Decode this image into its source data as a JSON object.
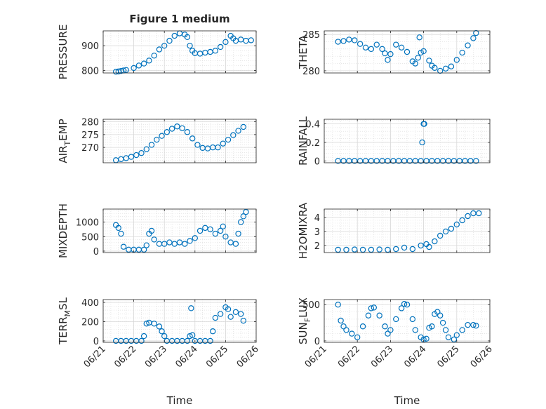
{
  "figure": {
    "title": "Figure 1 medium"
  },
  "colors": {
    "marker": "#0072BD",
    "axis": "#262626",
    "grid": "#d9d9d9",
    "background": "#ffffff"
  },
  "chart_data": [
    {
      "id": "pressure",
      "type": "scatter",
      "title": "Figure 1 medium",
      "xlabel": "",
      "ylabel": "PRESSURE",
      "xlim": [
        "06/21",
        "06/26"
      ],
      "ylim": [
        790,
        960
      ],
      "yticks": [
        800,
        900
      ],
      "xticks": [],
      "grid": true,
      "minor_grid": true,
      "points": [
        [
          "06/21 10:00",
          795
        ],
        [
          "06/21 12:00",
          796
        ],
        [
          "06/21 14:00",
          798
        ],
        [
          "06/21 16:00",
          800
        ],
        [
          "06/21 18:00",
          802
        ],
        [
          "06/22 00:00",
          810
        ],
        [
          "06/22 04:00",
          820
        ],
        [
          "06/22 08:00",
          828
        ],
        [
          "06/22 12:00",
          840
        ],
        [
          "06/22 16:00",
          860
        ],
        [
          "06/22 20:00",
          885
        ],
        [
          "06/23 00:00",
          900
        ],
        [
          "06/23 04:00",
          920
        ],
        [
          "06/23 08:00",
          940
        ],
        [
          "06/23 12:00",
          950
        ],
        [
          "06/23 16:00",
          945
        ],
        [
          "06/23 18:00",
          935
        ],
        [
          "06/23 20:00",
          900
        ],
        [
          "06/23 22:00",
          880
        ],
        [
          "06/24 00:00",
          870
        ],
        [
          "06/24 04:00",
          868
        ],
        [
          "06/24 08:00",
          872
        ],
        [
          "06/24 12:00",
          875
        ],
        [
          "06/24 16:00",
          880
        ],
        [
          "06/24 20:00",
          895
        ],
        [
          "06/25 00:00",
          915
        ],
        [
          "06/25 04:00",
          940
        ],
        [
          "06/25 06:00",
          930
        ],
        [
          "06/25 08:00",
          920
        ],
        [
          "06/25 12:00",
          925
        ],
        [
          "06/25 16:00",
          920
        ],
        [
          "06/25 20:00",
          922
        ]
      ]
    },
    {
      "id": "theta",
      "type": "scatter",
      "title": "",
      "xlabel": "",
      "ylabel": "THETA",
      "xlim": [
        "06/21",
        "06/26"
      ],
      "ylim": [
        279.7,
        285.5
      ],
      "yticks": [
        280,
        285
      ],
      "xticks": [],
      "grid": true,
      "minor_grid": true,
      "points": [
        [
          "06/21 10:00",
          284.0
        ],
        [
          "06/21 14:00",
          284.1
        ],
        [
          "06/21 18:00",
          284.3
        ],
        [
          "06/21 22:00",
          284.2
        ],
        [
          "06/22 02:00",
          283.7
        ],
        [
          "06/22 06:00",
          283.2
        ],
        [
          "06/22 10:00",
          283.0
        ],
        [
          "06/22 14:00",
          283.6
        ],
        [
          "06/22 18:00",
          283.0
        ],
        [
          "06/22 20:00",
          282.4
        ],
        [
          "06/22 22:00",
          281.5
        ],
        [
          "06/23 00:00",
          282.3
        ],
        [
          "06/23 04:00",
          283.6
        ],
        [
          "06/23 08:00",
          283.2
        ],
        [
          "06/23 12:00",
          282.6
        ],
        [
          "06/23 16:00",
          281.3
        ],
        [
          "06/23 18:00",
          281.0
        ],
        [
          "06/23 20:00",
          281.8
        ],
        [
          "06/23 21:00",
          284.6
        ],
        [
          "06/23 22:00",
          282.5
        ],
        [
          "06/24 00:00",
          282.7
        ],
        [
          "06/24 04:00",
          281.4
        ],
        [
          "06/24 06:00",
          280.7
        ],
        [
          "06/24 08:00",
          280.4
        ],
        [
          "06/24 12:00",
          280.0
        ],
        [
          "06/24 16:00",
          280.3
        ],
        [
          "06/24 20:00",
          280.6
        ],
        [
          "06/25 00:00",
          281.5
        ],
        [
          "06/25 04:00",
          282.5
        ],
        [
          "06/25 08:00",
          283.5
        ],
        [
          "06/25 12:00",
          284.5
        ],
        [
          "06/25 14:00",
          285.2
        ]
      ]
    },
    {
      "id": "air-temp",
      "type": "scatter",
      "title": "",
      "xlabel": "",
      "ylabel": "AIR_TEMP",
      "ylabel_main": "AIR",
      "ylabel_sub": "T",
      "ylabel_rest": "EMP",
      "xlim": [
        "06/21",
        "06/26"
      ],
      "ylim": [
        264,
        281
      ],
      "yticks": [
        270,
        275,
        280
      ],
      "xticks": [],
      "grid": true,
      "minor_grid": true,
      "points": [
        [
          "06/21 10:00",
          265.0
        ],
        [
          "06/21 14:00",
          265.4
        ],
        [
          "06/21 18:00",
          265.8
        ],
        [
          "06/21 22:00",
          266.3
        ],
        [
          "06/22 02:00",
          267.0
        ],
        [
          "06/22 06:00",
          267.8
        ],
        [
          "06/22 10:00",
          269.3
        ],
        [
          "06/22 14:00",
          271.0
        ],
        [
          "06/22 18:00",
          273.0
        ],
        [
          "06/22 22:00",
          274.5
        ],
        [
          "06/23 02:00",
          276.0
        ],
        [
          "06/23 06:00",
          277.3
        ],
        [
          "06/23 10:00",
          278.2
        ],
        [
          "06/23 14:00",
          277.5
        ],
        [
          "06/23 18:00",
          276.0
        ],
        [
          "06/23 22:00",
          273.5
        ],
        [
          "06/24 02:00",
          271.0
        ],
        [
          "06/24 06:00",
          269.8
        ],
        [
          "06/24 10:00",
          269.6
        ],
        [
          "06/24 14:00",
          270.0
        ],
        [
          "06/24 18:00",
          270.0
        ],
        [
          "06/24 22:00",
          271.5
        ],
        [
          "06/25 02:00",
          273.0
        ],
        [
          "06/25 06:00",
          274.8
        ],
        [
          "06/25 10:00",
          276.5
        ],
        [
          "06/25 14:00",
          278.0
        ]
      ]
    },
    {
      "id": "rainfall",
      "type": "scatter",
      "title": "",
      "xlabel": "",
      "ylabel": "RAINFALL",
      "xlim": [
        "06/21",
        "06/26"
      ],
      "ylim": [
        -0.02,
        0.45
      ],
      "yticks": [
        "0",
        "0.2",
        "0.4"
      ],
      "ytick_values": [
        0,
        0.2,
        0.4
      ],
      "xticks": [],
      "grid": true,
      "minor_grid": true,
      "points": [
        [
          "06/21 10:00",
          0
        ],
        [
          "06/21 14:00",
          0
        ],
        [
          "06/21 18:00",
          0
        ],
        [
          "06/21 22:00",
          0
        ],
        [
          "06/22 02:00",
          0
        ],
        [
          "06/22 06:00",
          0
        ],
        [
          "06/22 10:00",
          0
        ],
        [
          "06/22 14:00",
          0
        ],
        [
          "06/22 18:00",
          0
        ],
        [
          "06/22 22:00",
          0
        ],
        [
          "06/23 02:00",
          0
        ],
        [
          "06/23 06:00",
          0
        ],
        [
          "06/23 10:00",
          0
        ],
        [
          "06/23 14:00",
          0
        ],
        [
          "06/23 18:00",
          0
        ],
        [
          "06/23 22:00",
          0
        ],
        [
          "06/24 00:00",
          0.4
        ],
        [
          "06/24 00:30",
          0.4
        ],
        [
          "06/23 23:00",
          0.2
        ],
        [
          "06/24 02:00",
          0
        ],
        [
          "06/24 06:00",
          0
        ],
        [
          "06/24 10:00",
          0
        ],
        [
          "06/24 14:00",
          0
        ],
        [
          "06/24 18:00",
          0
        ],
        [
          "06/24 22:00",
          0
        ],
        [
          "06/25 02:00",
          0
        ],
        [
          "06/25 06:00",
          0
        ],
        [
          "06/25 10:00",
          0
        ],
        [
          "06/25 14:00",
          0
        ]
      ]
    },
    {
      "id": "mixdepth",
      "type": "scatter",
      "title": "",
      "xlabel": "",
      "ylabel": "MIXDEPTH",
      "xlim": [
        "06/21",
        "06/26"
      ],
      "ylim": [
        -50,
        1450
      ],
      "yticks": [
        0,
        500,
        1000
      ],
      "xticks": [],
      "grid": true,
      "minor_grid": true,
      "points": [
        [
          "06/21 10:00",
          900
        ],
        [
          "06/21 12:00",
          800
        ],
        [
          "06/21 14:00",
          600
        ],
        [
          "06/21 16:00",
          150
        ],
        [
          "06/21 20:00",
          50
        ],
        [
          "06/22 00:00",
          50
        ],
        [
          "06/22 04:00",
          50
        ],
        [
          "06/22 08:00",
          50
        ],
        [
          "06/22 10:00",
          200
        ],
        [
          "06/22 12:00",
          600
        ],
        [
          "06/22 14:00",
          700
        ],
        [
          "06/22 16:00",
          400
        ],
        [
          "06/22 20:00",
          250
        ],
        [
          "06/23 00:00",
          250
        ],
        [
          "06/23 04:00",
          300
        ],
        [
          "06/23 08:00",
          250
        ],
        [
          "06/23 12:00",
          300
        ],
        [
          "06/23 16:00",
          250
        ],
        [
          "06/23 20:00",
          350
        ],
        [
          "06/24 00:00",
          450
        ],
        [
          "06/24 04:00",
          700
        ],
        [
          "06/24 08:00",
          800
        ],
        [
          "06/24 12:00",
          750
        ],
        [
          "06/24 16:00",
          600
        ],
        [
          "06/24 20:00",
          700
        ],
        [
          "06/24 22:00",
          850
        ],
        [
          "06/25 00:00",
          500
        ],
        [
          "06/25 04:00",
          300
        ],
        [
          "06/25 08:00",
          250
        ],
        [
          "06/25 10:00",
          600
        ],
        [
          "06/25 12:00",
          1000
        ],
        [
          "06/25 14:00",
          1200
        ],
        [
          "06/25 16:00",
          1350
        ]
      ]
    },
    {
      "id": "h2omixra",
      "type": "scatter",
      "title": "",
      "xlabel": "",
      "ylabel": "H2OMIXRA",
      "xlim": [
        "06/21",
        "06/26"
      ],
      "ylim": [
        1.5,
        4.6
      ],
      "yticks": [
        2,
        3,
        4
      ],
      "xticks": [],
      "grid": true,
      "minor_grid": true,
      "points": [
        [
          "06/21 10:00",
          1.7
        ],
        [
          "06/21 16:00",
          1.7
        ],
        [
          "06/21 22:00",
          1.72
        ],
        [
          "06/22 04:00",
          1.7
        ],
        [
          "06/22 10:00",
          1.7
        ],
        [
          "06/22 16:00",
          1.72
        ],
        [
          "06/22 22:00",
          1.7
        ],
        [
          "06/23 04:00",
          1.75
        ],
        [
          "06/23 10:00",
          1.85
        ],
        [
          "06/23 16:00",
          1.75
        ],
        [
          "06/23 22:00",
          2.0
        ],
        [
          "06/24 02:00",
          2.1
        ],
        [
          "06/24 04:00",
          1.9
        ],
        [
          "06/24 08:00",
          2.3
        ],
        [
          "06/24 12:00",
          2.7
        ],
        [
          "06/24 16:00",
          3.0
        ],
        [
          "06/24 20:00",
          3.2
        ],
        [
          "06/25 00:00",
          3.5
        ],
        [
          "06/25 04:00",
          3.8
        ],
        [
          "06/25 08:00",
          4.1
        ],
        [
          "06/25 12:00",
          4.3
        ],
        [
          "06/25 16:00",
          4.3
        ]
      ]
    },
    {
      "id": "terr-msl",
      "type": "scatter",
      "title": "",
      "xlabel": "Time",
      "ylabel": "TERR_MSL",
      "ylabel_main": "TERR",
      "ylabel_sub": "M",
      "ylabel_rest": "SL",
      "xlim": [
        "06/21",
        "06/26"
      ],
      "ylim": [
        -15,
        430
      ],
      "yticks": [
        0,
        200,
        400
      ],
      "xticks": [
        "06/21",
        "06/22",
        "06/23",
        "06/24",
        "06/25",
        "06/26"
      ],
      "grid": true,
      "minor_grid": true,
      "points": [
        [
          "06/21 10:00",
          0
        ],
        [
          "06/21 14:00",
          0
        ],
        [
          "06/21 18:00",
          0
        ],
        [
          "06/21 22:00",
          0
        ],
        [
          "06/22 02:00",
          0
        ],
        [
          "06/22 06:00",
          0
        ],
        [
          "06/22 08:00",
          50
        ],
        [
          "06/22 10:00",
          180
        ],
        [
          "06/22 12:00",
          190
        ],
        [
          "06/22 16:00",
          180
        ],
        [
          "06/22 20:00",
          150
        ],
        [
          "06/22 22:00",
          100
        ],
        [
          "06/23 00:00",
          50
        ],
        [
          "06/23 02:00",
          0
        ],
        [
          "06/23 06:00",
          0
        ],
        [
          "06/23 10:00",
          0
        ],
        [
          "06/23 14:00",
          0
        ],
        [
          "06/23 18:00",
          0
        ],
        [
          "06/23 20:00",
          50
        ],
        [
          "06/23 21:00",
          340
        ],
        [
          "06/23 22:00",
          60
        ],
        [
          "06/24 00:00",
          0
        ],
        [
          "06/24 04:00",
          0
        ],
        [
          "06/24 08:00",
          0
        ],
        [
          "06/24 12:00",
          0
        ],
        [
          "06/24 14:00",
          100
        ],
        [
          "06/24 16:00",
          240
        ],
        [
          "06/24 20:00",
          280
        ],
        [
          "06/25 00:00",
          350
        ],
        [
          "06/25 02:00",
          330
        ],
        [
          "06/25 04:00",
          250
        ],
        [
          "06/25 08:00",
          300
        ],
        [
          "06/25 12:00",
          280
        ],
        [
          "06/25 14:00",
          210
        ]
      ]
    },
    {
      "id": "sun-flux",
      "type": "scatter",
      "title": "",
      "xlabel": "Time",
      "ylabel": "SUN_FLUX",
      "ylabel_main": "SUN",
      "ylabel_sub": "F",
      "ylabel_rest": "LUX",
      "xlim": [
        "06/21",
        "06/26"
      ],
      "ylim": [
        -20,
        570
      ],
      "yticks": [
        0,
        500
      ],
      "xticks": [
        "06/21",
        "06/22",
        "06/23",
        "06/24",
        "06/25",
        "06/26"
      ],
      "grid": true,
      "minor_grid": true,
      "points": [
        [
          "06/21 10:00",
          500
        ],
        [
          "06/21 12:00",
          280
        ],
        [
          "06/21 14:00",
          200
        ],
        [
          "06/21 16:00",
          150
        ],
        [
          "06/21 20:00",
          100
        ],
        [
          "06/22 00:00",
          50
        ],
        [
          "06/22 04:00",
          200
        ],
        [
          "06/22 08:00",
          350
        ],
        [
          "06/22 10:00",
          450
        ],
        [
          "06/22 12:00",
          460
        ],
        [
          "06/22 16:00",
          350
        ],
        [
          "06/22 20:00",
          200
        ],
        [
          "06/22 22:00",
          100
        ],
        [
          "06/23 00:00",
          150
        ],
        [
          "06/23 04:00",
          300
        ],
        [
          "06/23 08:00",
          450
        ],
        [
          "06/23 10:00",
          510
        ],
        [
          "06/23 12:00",
          500
        ],
        [
          "06/23 16:00",
          300
        ],
        [
          "06/23 18:00",
          150
        ],
        [
          "06/23 22:00",
          50
        ],
        [
          "06/24 00:00",
          20
        ],
        [
          "06/24 02:00",
          30
        ],
        [
          "06/24 04:00",
          180
        ],
        [
          "06/24 06:00",
          200
        ],
        [
          "06/24 08:00",
          370
        ],
        [
          "06/24 10:00",
          400
        ],
        [
          "06/24 12:00",
          350
        ],
        [
          "06/24 14:00",
          250
        ],
        [
          "06/24 16:00",
          150
        ],
        [
          "06/24 18:00",
          50
        ],
        [
          "06/24 22:00",
          20
        ],
        [
          "06/25 00:00",
          80
        ],
        [
          "06/25 04:00",
          150
        ],
        [
          "06/25 08:00",
          220
        ],
        [
          "06/25 12:00",
          220
        ],
        [
          "06/25 14:00",
          210
        ]
      ]
    }
  ]
}
